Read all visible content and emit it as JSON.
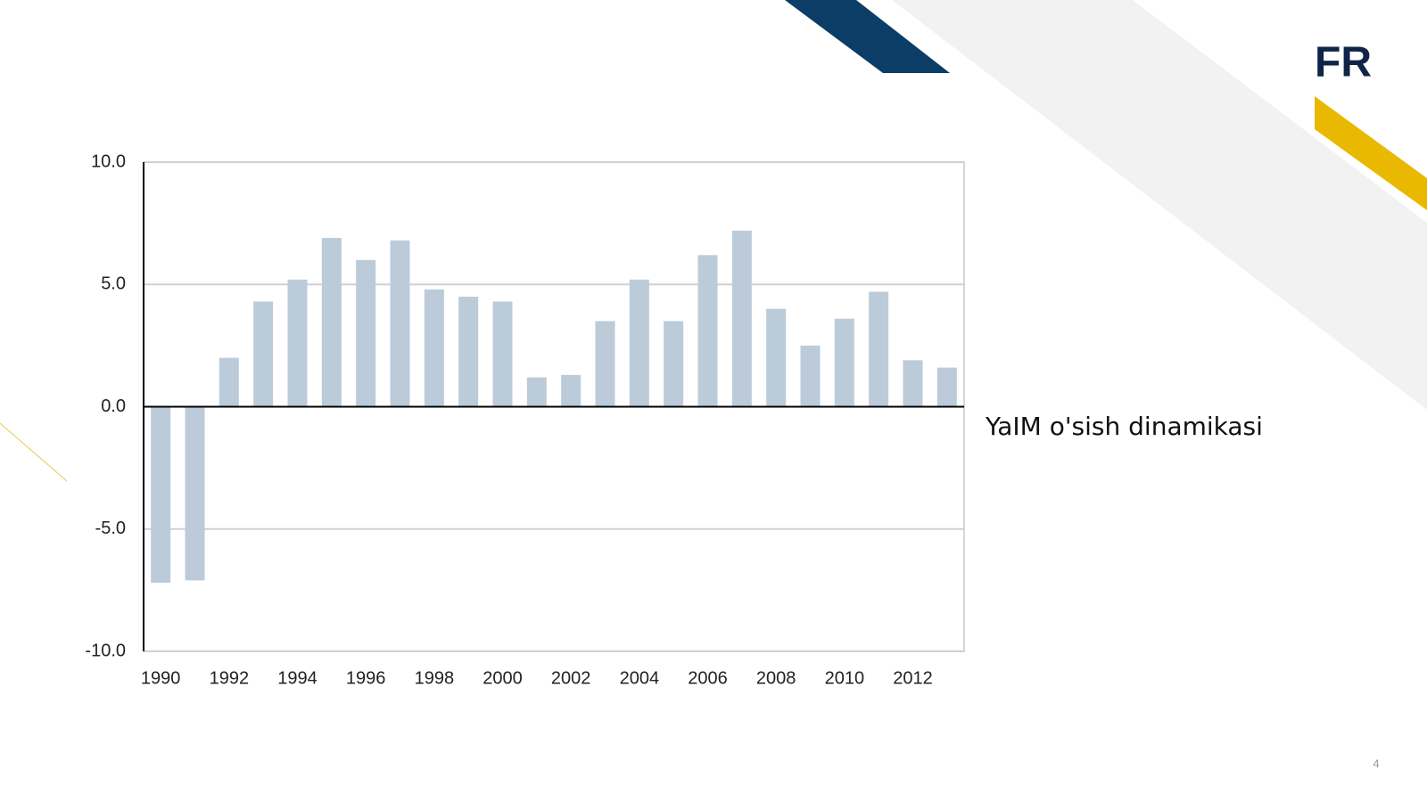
{
  "chart_data": {
    "type": "bar",
    "annotation": "YaIM o'sish dinamikasi",
    "categories": [
      "1990",
      null,
      "1992",
      null,
      "1994",
      null,
      "1996",
      null,
      "1998",
      null,
      "2000",
      null,
      "2002",
      null,
      "2004",
      null,
      "2006",
      null,
      "2008",
      null,
      "2010",
      null,
      "2012",
      null
    ],
    "values": [
      -7.2,
      -7.1,
      2.0,
      4.3,
      5.2,
      6.9,
      6.0,
      6.8,
      4.8,
      4.5,
      4.3,
      1.2,
      1.3,
      3.5,
      5.2,
      3.5,
      6.2,
      7.2,
      4.0,
      2.5,
      3.6,
      4.7,
      1.9,
      1.6
    ],
    "color": "#bccbd9",
    "ylim": [
      -10,
      10
    ],
    "yticks": [
      {
        "value": -10,
        "label": "-10.0"
      },
      {
        "value": -5,
        "label": "-5.0"
      },
      {
        "value": 0,
        "label": "0.0"
      },
      {
        "value": 5,
        "label": "5.0"
      },
      {
        "value": 10,
        "label": "10.0"
      }
    ],
    "grid": true
  },
  "slide": {
    "logo": "FR",
    "page_number": "4"
  }
}
